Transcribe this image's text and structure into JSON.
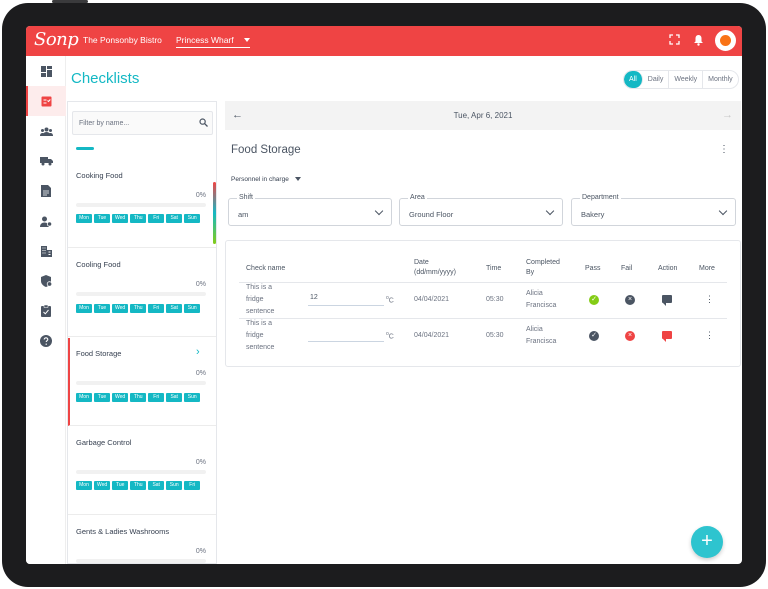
{
  "header": {
    "logo": "Sonp",
    "venue": "The Ponsonby Bistro",
    "location": "Princess Wharf"
  },
  "page": {
    "title": "Checklists"
  },
  "period_tabs": [
    "All",
    "Daily",
    "Weekly",
    "Monthly"
  ],
  "filter": {
    "placeholder": "Filter by name..."
  },
  "checklists": [
    {
      "title": "Cooking Food",
      "percent": "0%",
      "days": [
        "Mon",
        "Tue",
        "Wed",
        "Thu",
        "Fri",
        "Sat",
        "Sun"
      ]
    },
    {
      "title": "Cooling Food",
      "percent": "0%",
      "days": [
        "Mon",
        "Tue",
        "Wed",
        "Thu",
        "Fri",
        "Sat",
        "Sun"
      ]
    },
    {
      "title": "Food Storage",
      "percent": "0%",
      "days": [
        "Mon",
        "Tue",
        "Wed",
        "Thu",
        "Fri",
        "Sat",
        "Sun"
      ]
    },
    {
      "title": "Garbage Control",
      "percent": "0%",
      "days": [
        "Mon",
        "Wed",
        "Tue",
        "Thu",
        "Sat",
        "Sun",
        "Fri"
      ]
    },
    {
      "title": "Gents & Ladies Washrooms",
      "percent": "0%",
      "days": []
    }
  ],
  "main": {
    "date": "Tue, Apr 6, 2021",
    "section_title": "Food Storage",
    "personnel_label": "Personnel in charge",
    "filters": {
      "shift": {
        "label": "Shift",
        "value": "am"
      },
      "area": {
        "label": "Area",
        "value": "Ground Floor"
      },
      "department": {
        "label": "Department",
        "value": "Bakery"
      }
    },
    "table": {
      "headers": {
        "check_name": "Check name",
        "date_line1": "Date",
        "date_line2": "(dd/mm/yyyy)",
        "time": "Time",
        "completed_line1": "Completed",
        "completed_line2": "By",
        "pass": "Pass",
        "fail": "Fail",
        "action": "Action",
        "more": "More"
      },
      "rows": [
        {
          "name_l1": "This is a",
          "name_l2": "fridge",
          "name_l3": "sentence",
          "temp": "12",
          "unit": "C",
          "date": "04/04/2021",
          "time": "05:30",
          "by_l1": "Alicia",
          "by_l2": "Francisca",
          "pass": "pass",
          "fail": "none",
          "action_color": "#4b5563"
        },
        {
          "name_l1": "This is a",
          "name_l2": "fridge",
          "name_l3": "sentence",
          "temp": "",
          "unit": "C",
          "date": "04/04/2021",
          "time": "05:30",
          "by_l1": "Alicia",
          "by_l2": "Francisca",
          "pass": "none",
          "fail": "fail",
          "action_color": "#ef4444"
        }
      ]
    }
  },
  "colors": {
    "brand": "#ef4444",
    "accent": "#14b8c4",
    "pass": "#84cc16"
  },
  "icons": {
    "rail": [
      "dashboard-icon",
      "checklist-icon",
      "people-icon",
      "truck-icon",
      "document-icon",
      "user-settings-icon",
      "building-icon",
      "shield-icon",
      "clipboard-icon",
      "help-icon"
    ]
  }
}
